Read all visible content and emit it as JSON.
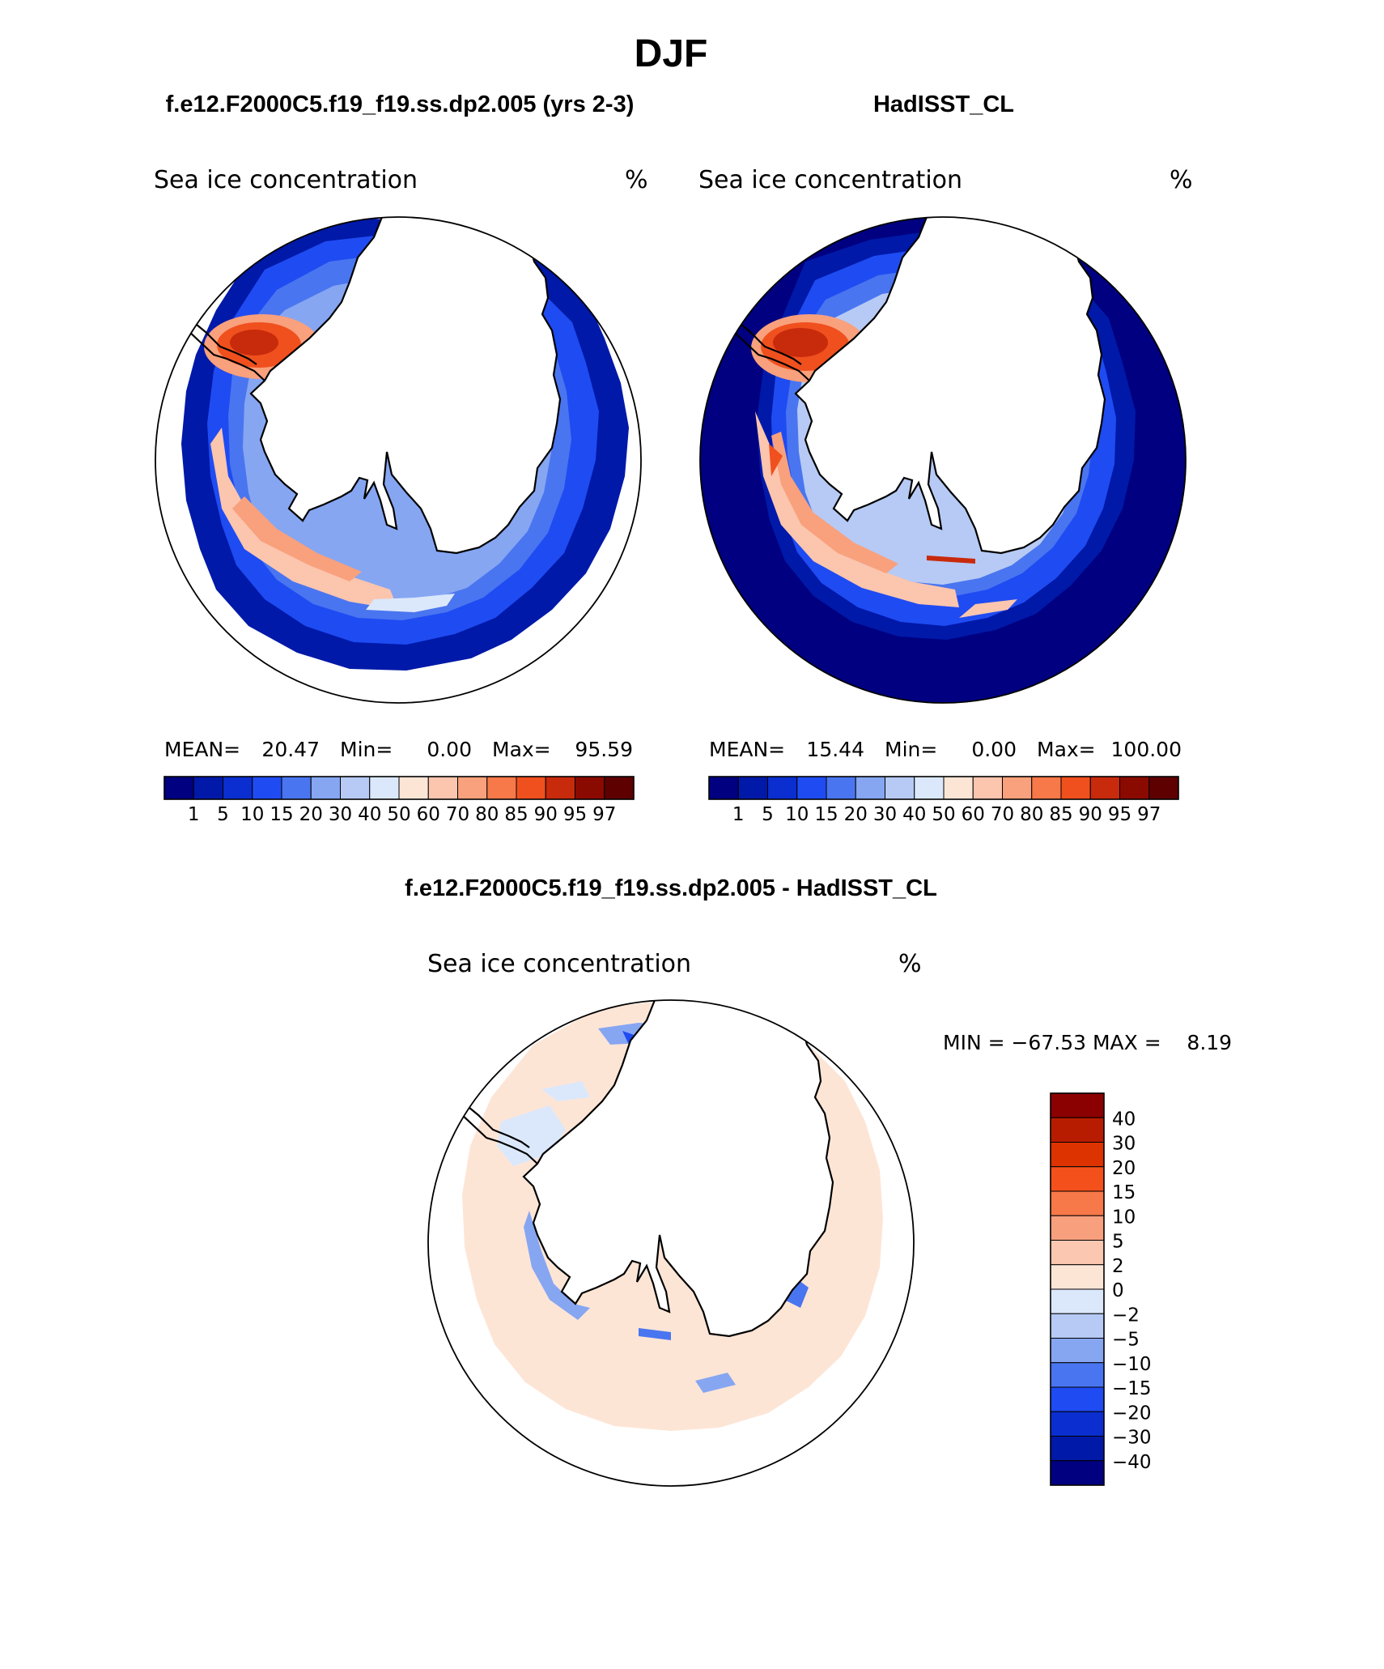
{
  "figure": {
    "season": "DJF",
    "panel_left_title": "f.e12.F2000C5.f19_f19.ss.dp2.005 (yrs 2-3)",
    "panel_right_title": "HadISST_CL",
    "panel_diff_title": "f.e12.F2000C5.f19_f19.ss.dp2.005 - HadISST_CL"
  },
  "maps": [
    {
      "id": "model",
      "variable": "Sea ice concentration",
      "units": "%",
      "stats": {
        "mean_label": "MEAN=",
        "mean": "20.47",
        "min_label": "Min=",
        "min": "0.00",
        "max_label": "Max=",
        "max": "95.59"
      },
      "ocean_fill": "none"
    },
    {
      "id": "obs",
      "variable": "Sea ice concentration",
      "units": "%",
      "stats": {
        "mean_label": "MEAN=",
        "mean": "15.44",
        "min_label": "Min=",
        "min": "0.00",
        "max_label": "Max=",
        "max": "100.00"
      },
      "ocean_fill": "#000080"
    },
    {
      "id": "diff",
      "variable": "Sea ice concentration",
      "units": "%",
      "range_text": "MIN = −67.53 MAX =    8.19"
    }
  ],
  "colorbar_abs": {
    "levels": [
      "1",
      "5",
      "10",
      "15",
      "20",
      "30",
      "40",
      "50",
      "60",
      "70",
      "80",
      "85",
      "90",
      "95",
      "97"
    ],
    "colors": [
      "#000080",
      "#0019a8",
      "#0a2ecf",
      "#1f4bf2",
      "#4a75f0",
      "#86a6f2",
      "#b6caf5",
      "#dbe8fb",
      "#fde5d6",
      "#fbc5ae",
      "#f9a07c",
      "#f77848",
      "#f0501e",
      "#c82a0c",
      "#8b0a00",
      "#5e0000"
    ]
  },
  "colorbar_diff": {
    "levels": [
      "40",
      "30",
      "20",
      "15",
      "10",
      "5",
      "2",
      "0",
      "−2",
      "−5",
      "−10",
      "−15",
      "−20",
      "−30",
      "−40"
    ],
    "colors": [
      "#8b0000",
      "#b81c00",
      "#dd3300",
      "#f4501c",
      "#f77848",
      "#f8a07e",
      "#fbc7b0",
      "#fde5d6",
      "#dbe8fb",
      "#b6caf5",
      "#86a6f2",
      "#4a75f0",
      "#1f4bf2",
      "#0a2ecf",
      "#0019a8",
      "#000080"
    ]
  },
  "chart_data": [
    {
      "type": "heatmap",
      "title": "Sea ice concentration",
      "subtitle": "f.e12.F2000C5.f19_f19.ss.dp2.005 (yrs 2-3)",
      "units": "%",
      "projection": "south polar stereographic",
      "mean": 20.47,
      "min": 0.0,
      "max": 95.59,
      "contour_levels": [
        1,
        5,
        10,
        15,
        20,
        30,
        40,
        50,
        60,
        70,
        80,
        85,
        90,
        95,
        97
      ]
    },
    {
      "type": "heatmap",
      "title": "Sea ice concentration",
      "subtitle": "HadISST_CL",
      "units": "%",
      "projection": "south polar stereographic",
      "mean": 15.44,
      "min": 0.0,
      "max": 100.0,
      "contour_levels": [
        1,
        5,
        10,
        15,
        20,
        30,
        40,
        50,
        60,
        70,
        80,
        85,
        90,
        95,
        97
      ]
    },
    {
      "type": "heatmap",
      "title": "Sea ice concentration",
      "subtitle": "f.e12.F2000C5.f19_f19.ss.dp2.005 - HadISST_CL",
      "units": "%",
      "projection": "south polar stereographic",
      "min": -67.53,
      "max": 8.19,
      "contour_levels": [
        -40,
        -30,
        -20,
        -15,
        -10,
        -5,
        -2,
        0,
        2,
        5,
        10,
        15,
        20,
        30,
        40
      ]
    }
  ]
}
